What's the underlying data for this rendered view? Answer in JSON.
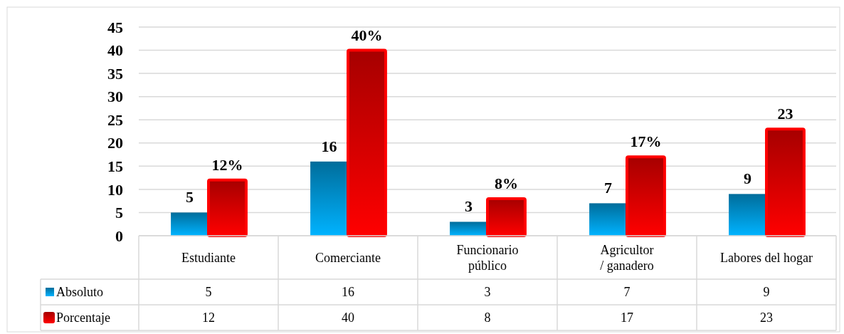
{
  "chart_data": {
    "type": "bar",
    "categories": [
      "Estudiante",
      "Comerciante",
      "Funcionario público",
      "Agricultor / ganadero",
      "Labores del hogar"
    ],
    "series": [
      {
        "name": "Absoluto",
        "color": "#0096d6",
        "values": [
          5,
          16,
          3,
          7,
          9
        ]
      },
      {
        "name": "Porcentaje",
        "color": "#ff0000",
        "values": [
          12,
          40,
          8,
          17,
          23
        ]
      }
    ],
    "annotations": [
      {
        "text": "5",
        "x": "Estudiante",
        "y": 5
      },
      {
        "text": "16",
        "x": "Comerciante",
        "y": 16
      },
      {
        "text": "3",
        "x": "Funcionario público",
        "y": 3
      },
      {
        "text": "7",
        "x": "Agricultor / ganadero",
        "y": 7
      },
      {
        "text": "9",
        "x": "Labores del hogar",
        "y": 9
      },
      {
        "text": "12%",
        "x": "Estudiante",
        "y": 12
      },
      {
        "text": "40%",
        "x": "Comerciante",
        "y": 40
      },
      {
        "text": "8%",
        "x": "Funcionario público",
        "y": 8
      },
      {
        "text": "17%",
        "x": "Agricultor / ganadero",
        "y": 17
      },
      {
        "text": "23",
        "x": "Labores del hogar",
        "y": 23
      }
    ],
    "ylim": [
      0,
      45
    ],
    "yticks": [
      0,
      5,
      10,
      15,
      20,
      25,
      30,
      35,
      40,
      45
    ],
    "grid": "y",
    "data_labels": true,
    "legend": "bottom"
  }
}
